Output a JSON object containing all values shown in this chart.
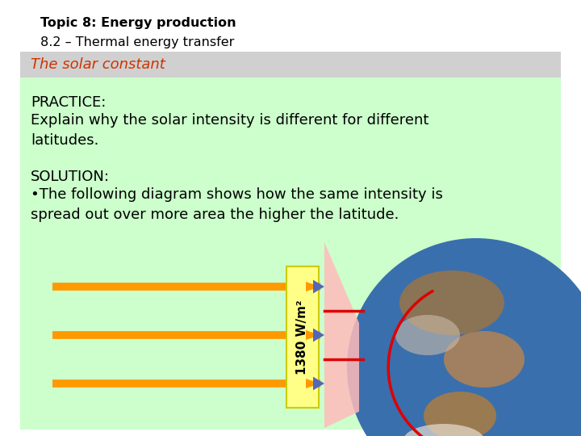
{
  "title_line1": "Topic 8: Energy production",
  "title_line2": "8.2 – Thermal energy transfer",
  "subtitle": "The solar constant",
  "subtitle_color": "#cc3300",
  "header_bg": "#ffffff",
  "gray_band_bg": "#d0d0d0",
  "content_bg": "#ccffcc",
  "practice_label": "PRACTICE:",
  "practice_text": "Explain why the solar intensity is different for different\nlatitudes.",
  "solution_label": "SOLUTION:",
  "solution_bullet": "•The following diagram shows how the same intensity is\nspread out over more area the higher the latitude.",
  "arrow_color": "#ff9900",
  "label_bg": "#ffff88",
  "label_border": "#cccc00",
  "label_text": "1380 W/m²",
  "label_text_color": "#000000",
  "red_arc_color": "#dd0000",
  "pink_color": "#ffbbbb",
  "blue_arrow_color": "#5566bb",
  "earth_photo_color": "#4477aa"
}
